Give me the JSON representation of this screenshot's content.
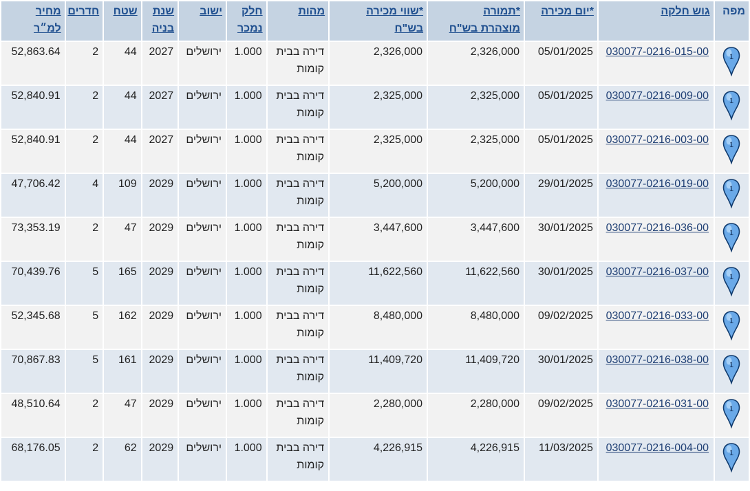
{
  "headers": {
    "map": "מפה",
    "parcel": "גוש חלקה",
    "sale_day": "*יום מכירה",
    "declared_1": "*תמורה",
    "declared_2": "מוצהרת בש\"ח",
    "sale_value_1": "*שווי מכירה",
    "sale_value_2": "בש\"ח",
    "type": "מהות",
    "part_1": "חלק",
    "part_2": "נמכר",
    "city": "ישוב",
    "year_1": "שנת",
    "year_2": "בניה",
    "area": "שטח",
    "rooms": "חדרים",
    "ppm_1": "מחיר",
    "ppm_2": "למ״ר"
  },
  "pin_label": "1",
  "rows": [
    {
      "parcel": "030077-0216-015-00",
      "date": "05/01/2025",
      "declared": "2,326,000",
      "value": "2,326,000",
      "type": "דירה בבית קומות",
      "part": "1.000",
      "city": "ירושלים",
      "year": "2027",
      "area": "44",
      "rooms": "2",
      "ppm": "52,863.64"
    },
    {
      "parcel": "030077-0216-009-00",
      "date": "05/01/2025",
      "declared": "2,325,000",
      "value": "2,325,000",
      "type": "דירה בבית קומות",
      "part": "1.000",
      "city": "ירושלים",
      "year": "2027",
      "area": "44",
      "rooms": "2",
      "ppm": "52,840.91"
    },
    {
      "parcel": "030077-0216-003-00",
      "date": "05/01/2025",
      "declared": "2,325,000",
      "value": "2,325,000",
      "type": "דירה בבית קומות",
      "part": "1.000",
      "city": "ירושלים",
      "year": "2027",
      "area": "44",
      "rooms": "2",
      "ppm": "52,840.91"
    },
    {
      "parcel": "030077-0216-019-00",
      "date": "29/01/2025",
      "declared": "5,200,000",
      "value": "5,200,000",
      "type": "דירה בבית קומות",
      "part": "1.000",
      "city": "ירושלים",
      "year": "2029",
      "area": "109",
      "rooms": "4",
      "ppm": "47,706.42"
    },
    {
      "parcel": "030077-0216-036-00",
      "date": "30/01/2025",
      "declared": "3,447,600",
      "value": "3,447,600",
      "type": "דירה בבית קומות",
      "part": "1.000",
      "city": "ירושלים",
      "year": "2029",
      "area": "47",
      "rooms": "2",
      "ppm": "73,353.19"
    },
    {
      "parcel": "030077-0216-037-00",
      "date": "30/01/2025",
      "declared": "11,622,560",
      "value": "11,622,560",
      "type": "דירה בבית קומות",
      "part": "1.000",
      "city": "ירושלים",
      "year": "2029",
      "area": "165",
      "rooms": "5",
      "ppm": "70,439.76"
    },
    {
      "parcel": "030077-0216-033-00",
      "date": "09/02/2025",
      "declared": "8,480,000",
      "value": "8,480,000",
      "type": "דירה בבית קומות",
      "part": "1.000",
      "city": "ירושלים",
      "year": "2029",
      "area": "162",
      "rooms": "5",
      "ppm": "52,345.68"
    },
    {
      "parcel": "030077-0216-038-00",
      "date": "30/01/2025",
      "declared": "11,409,720",
      "value": "11,409,720",
      "type": "דירה בבית קומות",
      "part": "1.000",
      "city": "ירושלים",
      "year": "2029",
      "area": "161",
      "rooms": "5",
      "ppm": "70,867.83"
    },
    {
      "parcel": "030077-0216-031-00",
      "date": "09/02/2025",
      "declared": "2,280,000",
      "value": "2,280,000",
      "type": "דירה בבית קומות",
      "part": "1.000",
      "city": "ירושלים",
      "year": "2029",
      "area": "47",
      "rooms": "2",
      "ppm": "48,510.64"
    },
    {
      "parcel": "030077-0216-004-00",
      "date": "11/03/2025",
      "declared": "4,226,915",
      "value": "4,226,915",
      "type": "דירה בבית קומות",
      "part": "1.000",
      "city": "ירושלים",
      "year": "2029",
      "area": "62",
      "rooms": "2",
      "ppm": "68,176.05"
    }
  ]
}
